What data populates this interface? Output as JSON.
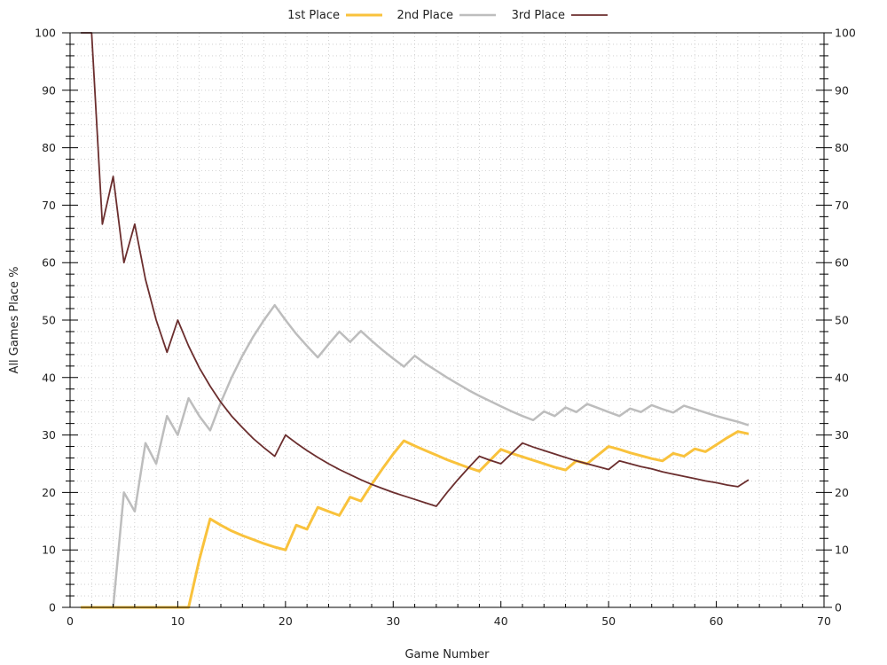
{
  "chart_data": {
    "type": "line",
    "title": "",
    "xlabel": "Game Number",
    "ylabel": "All Games Place %",
    "xlim": [
      0,
      70
    ],
    "ylim": [
      0,
      100
    ],
    "x_ticks": [
      0,
      10,
      20,
      30,
      40,
      50,
      60,
      70
    ],
    "y_ticks": [
      0,
      10,
      20,
      30,
      40,
      50,
      60,
      70,
      80,
      90,
      100
    ],
    "grid": true,
    "legend_position": "top",
    "series": [
      {
        "name": "1st Place",
        "color": "#f9c23c",
        "points": [
          [
            1,
            0
          ],
          [
            2,
            0
          ],
          [
            3,
            0
          ],
          [
            4,
            0
          ],
          [
            5,
            0
          ],
          [
            6,
            0
          ],
          [
            7,
            0
          ],
          [
            8,
            0
          ],
          [
            9,
            0
          ],
          [
            10,
            0
          ],
          [
            11,
            0
          ],
          [
            12,
            8.3
          ],
          [
            13,
            15.4
          ],
          [
            14,
            14.3
          ],
          [
            15,
            13.3
          ],
          [
            16,
            12.5
          ],
          [
            17,
            11.8
          ],
          [
            18,
            11.1
          ],
          [
            19,
            10.5
          ],
          [
            20,
            10
          ],
          [
            21,
            14.3
          ],
          [
            22,
            13.6
          ],
          [
            23,
            17.4
          ],
          [
            24,
            16.7
          ],
          [
            25,
            16
          ],
          [
            26,
            19.2
          ],
          [
            27,
            18.5
          ],
          [
            28,
            21.4
          ],
          [
            29,
            24.1
          ],
          [
            30,
            26.7
          ],
          [
            31,
            29
          ],
          [
            32,
            28.1
          ],
          [
            33,
            27.3
          ],
          [
            34,
            26.5
          ],
          [
            35,
            25.7
          ],
          [
            36,
            25
          ],
          [
            37,
            24.3
          ],
          [
            38,
            23.7
          ],
          [
            39,
            25.6
          ],
          [
            40,
            27.5
          ],
          [
            41,
            26.8
          ],
          [
            42,
            26.2
          ],
          [
            43,
            25.6
          ],
          [
            44,
            25
          ],
          [
            45,
            24.4
          ],
          [
            46,
            23.9
          ],
          [
            47,
            25.5
          ],
          [
            48,
            25
          ],
          [
            49,
            26.5
          ],
          [
            50,
            28
          ],
          [
            51,
            27.5
          ],
          [
            52,
            26.9
          ],
          [
            53,
            26.4
          ],
          [
            54,
            25.9
          ],
          [
            55,
            25.5
          ],
          [
            56,
            26.8
          ],
          [
            57,
            26.3
          ],
          [
            58,
            27.6
          ],
          [
            59,
            27.1
          ],
          [
            60,
            28.3
          ],
          [
            61,
            29.5
          ],
          [
            62,
            30.6
          ],
          [
            63,
            30.2
          ]
        ]
      },
      {
        "name": "2nd Place",
        "color": "#bdbdbd",
        "points": [
          [
            1,
            0
          ],
          [
            2,
            0
          ],
          [
            3,
            0
          ],
          [
            4,
            0
          ],
          [
            5,
            20
          ],
          [
            6,
            16.7
          ],
          [
            7,
            28.6
          ],
          [
            8,
            25
          ],
          [
            9,
            33.3
          ],
          [
            10,
            30
          ],
          [
            11,
            36.4
          ],
          [
            12,
            33.3
          ],
          [
            13,
            30.8
          ],
          [
            14,
            35.7
          ],
          [
            15,
            40
          ],
          [
            16,
            43.8
          ],
          [
            17,
            47.1
          ],
          [
            18,
            50
          ],
          [
            19,
            52.6
          ],
          [
            20,
            50
          ],
          [
            21,
            47.6
          ],
          [
            22,
            45.5
          ],
          [
            23,
            43.5
          ],
          [
            24,
            45.8
          ],
          [
            25,
            48
          ],
          [
            26,
            46.2
          ],
          [
            27,
            48.1
          ],
          [
            28,
            46.4
          ],
          [
            29,
            44.8
          ],
          [
            30,
            43.3
          ],
          [
            31,
            41.9
          ],
          [
            32,
            43.8
          ],
          [
            33,
            42.4
          ],
          [
            34,
            41.2
          ],
          [
            35,
            40
          ],
          [
            36,
            38.9
          ],
          [
            37,
            37.8
          ],
          [
            38,
            36.8
          ],
          [
            39,
            35.9
          ],
          [
            40,
            35
          ],
          [
            41,
            34.1
          ],
          [
            42,
            33.3
          ],
          [
            43,
            32.6
          ],
          [
            44,
            34.1
          ],
          [
            45,
            33.3
          ],
          [
            46,
            34.8
          ],
          [
            47,
            34
          ],
          [
            48,
            35.4
          ],
          [
            49,
            34.7
          ],
          [
            50,
            34
          ],
          [
            51,
            33.3
          ],
          [
            52,
            34.6
          ],
          [
            53,
            34
          ],
          [
            54,
            35.2
          ],
          [
            55,
            34.5
          ],
          [
            56,
            33.9
          ],
          [
            57,
            35.1
          ],
          [
            58,
            34.5
          ],
          [
            59,
            33.9
          ],
          [
            60,
            33.3
          ],
          [
            61,
            32.8
          ],
          [
            62,
            32.3
          ],
          [
            63,
            31.7
          ]
        ]
      },
      {
        "name": "3rd Place",
        "color": "#6b2e2e",
        "points": [
          [
            1,
            100
          ],
          [
            2,
            100
          ],
          [
            3,
            66.7
          ],
          [
            4,
            75
          ],
          [
            5,
            60
          ],
          [
            6,
            66.7
          ],
          [
            7,
            57.1
          ],
          [
            8,
            50
          ],
          [
            9,
            44.4
          ],
          [
            10,
            50
          ],
          [
            11,
            45.5
          ],
          [
            12,
            41.7
          ],
          [
            13,
            38.5
          ],
          [
            14,
            35.7
          ],
          [
            15,
            33.3
          ],
          [
            16,
            31.3
          ],
          [
            17,
            29.4
          ],
          [
            18,
            27.8
          ],
          [
            19,
            26.3
          ],
          [
            20,
            30
          ],
          [
            21,
            28.6
          ],
          [
            22,
            27.3
          ],
          [
            23,
            26.1
          ],
          [
            24,
            25
          ],
          [
            25,
            24
          ],
          [
            26,
            23.1
          ],
          [
            27,
            22.2
          ],
          [
            28,
            21.4
          ],
          [
            29,
            20.7
          ],
          [
            30,
            20
          ],
          [
            31,
            19.4
          ],
          [
            32,
            18.8
          ],
          [
            33,
            18.2
          ],
          [
            34,
            17.6
          ],
          [
            35,
            20
          ],
          [
            36,
            22.2
          ],
          [
            37,
            24.3
          ],
          [
            38,
            26.3
          ],
          [
            39,
            25.6
          ],
          [
            40,
            25
          ],
          [
            41,
            26.8
          ],
          [
            42,
            28.6
          ],
          [
            43,
            27.9
          ],
          [
            44,
            27.3
          ],
          [
            45,
            26.7
          ],
          [
            46,
            26.1
          ],
          [
            47,
            25.5
          ],
          [
            48,
            25
          ],
          [
            49,
            24.5
          ],
          [
            50,
            24
          ],
          [
            51,
            25.5
          ],
          [
            52,
            25
          ],
          [
            53,
            24.5
          ],
          [
            54,
            24.1
          ],
          [
            55,
            23.6
          ],
          [
            56,
            23.2
          ],
          [
            57,
            22.8
          ],
          [
            58,
            22.4
          ],
          [
            59,
            22
          ],
          [
            60,
            21.7
          ],
          [
            61,
            21.3
          ],
          [
            62,
            21
          ],
          [
            63,
            22.2
          ]
        ]
      }
    ]
  }
}
